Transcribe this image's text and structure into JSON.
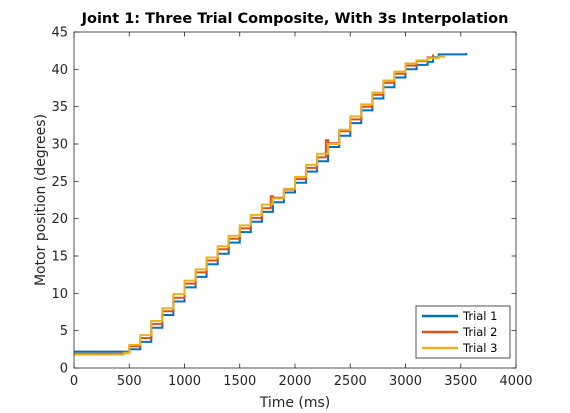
{
  "chart_data": {
    "type": "line",
    "title": "Joint 1: Three Trial Composite, With 3s Interpolation",
    "xlabel": "Time (ms)",
    "ylabel": "Motor position (degrees)",
    "xlim": [
      0,
      4000
    ],
    "ylim": [
      0,
      45
    ],
    "xticks": [
      "0",
      "500",
      "1000",
      "1500",
      "2000",
      "2500",
      "3000",
      "3500",
      "4000"
    ],
    "yticks": [
      "0",
      "5",
      "10",
      "15",
      "20",
      "25",
      "30",
      "35",
      "40",
      "45"
    ],
    "grid": false,
    "legend_position": "bottom-right",
    "series": [
      {
        "name": "Trial 1",
        "color": "#0072BD",
        "x": [
          0,
          300,
          450,
          500,
          600,
          700,
          800,
          900,
          1000,
          1100,
          1200,
          1300,
          1400,
          1500,
          1600,
          1700,
          1800,
          1900,
          2000,
          2100,
          2200,
          2300,
          2400,
          2500,
          2600,
          2700,
          2800,
          2900,
          3000,
          3100,
          3200,
          3250,
          3300,
          3400,
          3550
        ],
        "y": [
          2.2,
          2.2,
          2.2,
          2.5,
          3.5,
          5.4,
          7.1,
          8.9,
          10.8,
          12.2,
          13.9,
          15.3,
          16.8,
          18.2,
          19.6,
          20.9,
          22.2,
          23.5,
          24.8,
          26.3,
          27.7,
          29.6,
          31.1,
          32.8,
          34.5,
          36.1,
          37.6,
          38.9,
          40.0,
          40.6,
          41.0,
          41.6,
          42.0,
          42.0,
          42.2
        ]
      },
      {
        "name": "Trial 2",
        "color": "#D95319",
        "x": [
          0,
          300,
          450,
          500,
          600,
          700,
          800,
          900,
          1000,
          1100,
          1200,
          1300,
          1400,
          1500,
          1600,
          1700,
          1780,
          1800,
          1900,
          2000,
          2100,
          2200,
          2280,
          2300,
          2400,
          2500,
          2600,
          2700,
          2800,
          2900,
          3000,
          3100,
          3200,
          3250
        ],
        "y": [
          1.9,
          1.9,
          2.1,
          2.9,
          4.0,
          5.9,
          7.6,
          9.4,
          11.3,
          12.8,
          14.4,
          15.9,
          17.3,
          18.7,
          20.1,
          21.4,
          23.0,
          22.8,
          23.9,
          25.3,
          26.8,
          28.2,
          30.5,
          30.1,
          31.7,
          33.3,
          35.0,
          36.6,
          38.2,
          39.4,
          40.5,
          41.1,
          41.6,
          42.0
        ]
      },
      {
        "name": "Trial 3",
        "color": "#EDB120",
        "x": [
          0,
          300,
          450,
          500,
          600,
          700,
          800,
          900,
          1000,
          1100,
          1200,
          1300,
          1400,
          1500,
          1600,
          1700,
          1800,
          1900,
          2000,
          2100,
          2200,
          2300,
          2400,
          2500,
          2600,
          2700,
          2800,
          2900,
          3000,
          3100,
          3200,
          3300,
          3350
        ],
        "y": [
          1.8,
          1.8,
          2.0,
          3.1,
          4.4,
          6.3,
          8.0,
          9.9,
          11.7,
          13.2,
          14.8,
          16.3,
          17.7,
          19.1,
          20.5,
          21.9,
          22.7,
          24.0,
          25.6,
          27.2,
          28.7,
          30.0,
          31.9,
          33.7,
          35.3,
          36.9,
          38.5,
          39.7,
          40.8,
          41.2,
          41.5,
          41.7,
          41.8
        ]
      }
    ]
  }
}
